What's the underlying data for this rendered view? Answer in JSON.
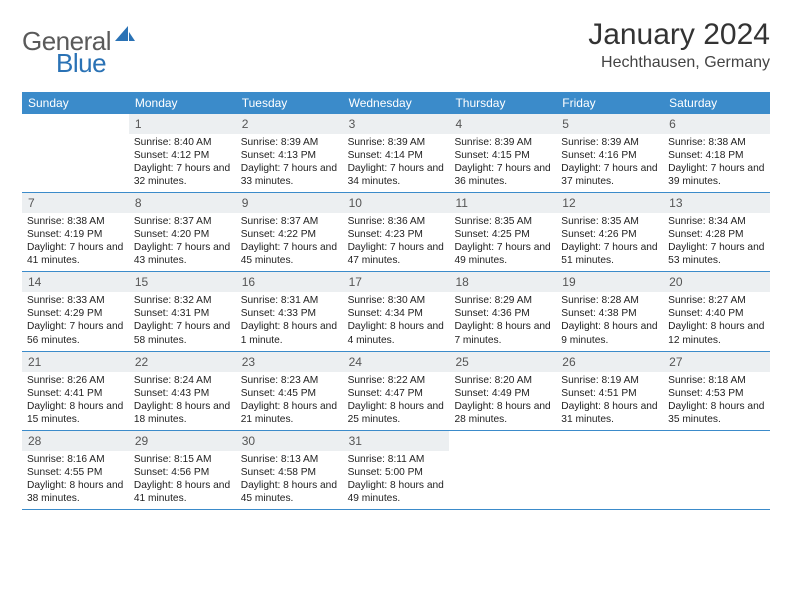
{
  "brand": {
    "word1": "General",
    "word2": "Blue"
  },
  "title": "January 2024",
  "location": "Hechthausen, Germany",
  "colors": {
    "header_bg": "#3b8bca",
    "header_text": "#ffffff",
    "daynum_bg": "#eceff1",
    "daynum_text": "#555555",
    "border": "#3b8bca",
    "title_text": "#333333",
    "body_text": "#222222",
    "logo_gray": "#5a5a5a",
    "logo_blue": "#2a72b5"
  },
  "weekdays": [
    "Sunday",
    "Monday",
    "Tuesday",
    "Wednesday",
    "Thursday",
    "Friday",
    "Saturday"
  ],
  "weeks": [
    [
      {
        "n": "",
        "sr": "",
        "ss": "",
        "dl": ""
      },
      {
        "n": "1",
        "sr": "Sunrise: 8:40 AM",
        "ss": "Sunset: 4:12 PM",
        "dl": "Daylight: 7 hours and 32 minutes."
      },
      {
        "n": "2",
        "sr": "Sunrise: 8:39 AM",
        "ss": "Sunset: 4:13 PM",
        "dl": "Daylight: 7 hours and 33 minutes."
      },
      {
        "n": "3",
        "sr": "Sunrise: 8:39 AM",
        "ss": "Sunset: 4:14 PM",
        "dl": "Daylight: 7 hours and 34 minutes."
      },
      {
        "n": "4",
        "sr": "Sunrise: 8:39 AM",
        "ss": "Sunset: 4:15 PM",
        "dl": "Daylight: 7 hours and 36 minutes."
      },
      {
        "n": "5",
        "sr": "Sunrise: 8:39 AM",
        "ss": "Sunset: 4:16 PM",
        "dl": "Daylight: 7 hours and 37 minutes."
      },
      {
        "n": "6",
        "sr": "Sunrise: 8:38 AM",
        "ss": "Sunset: 4:18 PM",
        "dl": "Daylight: 7 hours and 39 minutes."
      }
    ],
    [
      {
        "n": "7",
        "sr": "Sunrise: 8:38 AM",
        "ss": "Sunset: 4:19 PM",
        "dl": "Daylight: 7 hours and 41 minutes."
      },
      {
        "n": "8",
        "sr": "Sunrise: 8:37 AM",
        "ss": "Sunset: 4:20 PM",
        "dl": "Daylight: 7 hours and 43 minutes."
      },
      {
        "n": "9",
        "sr": "Sunrise: 8:37 AM",
        "ss": "Sunset: 4:22 PM",
        "dl": "Daylight: 7 hours and 45 minutes."
      },
      {
        "n": "10",
        "sr": "Sunrise: 8:36 AM",
        "ss": "Sunset: 4:23 PM",
        "dl": "Daylight: 7 hours and 47 minutes."
      },
      {
        "n": "11",
        "sr": "Sunrise: 8:35 AM",
        "ss": "Sunset: 4:25 PM",
        "dl": "Daylight: 7 hours and 49 minutes."
      },
      {
        "n": "12",
        "sr": "Sunrise: 8:35 AM",
        "ss": "Sunset: 4:26 PM",
        "dl": "Daylight: 7 hours and 51 minutes."
      },
      {
        "n": "13",
        "sr": "Sunrise: 8:34 AM",
        "ss": "Sunset: 4:28 PM",
        "dl": "Daylight: 7 hours and 53 minutes."
      }
    ],
    [
      {
        "n": "14",
        "sr": "Sunrise: 8:33 AM",
        "ss": "Sunset: 4:29 PM",
        "dl": "Daylight: 7 hours and 56 minutes."
      },
      {
        "n": "15",
        "sr": "Sunrise: 8:32 AM",
        "ss": "Sunset: 4:31 PM",
        "dl": "Daylight: 7 hours and 58 minutes."
      },
      {
        "n": "16",
        "sr": "Sunrise: 8:31 AM",
        "ss": "Sunset: 4:33 PM",
        "dl": "Daylight: 8 hours and 1 minute."
      },
      {
        "n": "17",
        "sr": "Sunrise: 8:30 AM",
        "ss": "Sunset: 4:34 PM",
        "dl": "Daylight: 8 hours and 4 minutes."
      },
      {
        "n": "18",
        "sr": "Sunrise: 8:29 AM",
        "ss": "Sunset: 4:36 PM",
        "dl": "Daylight: 8 hours and 7 minutes."
      },
      {
        "n": "19",
        "sr": "Sunrise: 8:28 AM",
        "ss": "Sunset: 4:38 PM",
        "dl": "Daylight: 8 hours and 9 minutes."
      },
      {
        "n": "20",
        "sr": "Sunrise: 8:27 AM",
        "ss": "Sunset: 4:40 PM",
        "dl": "Daylight: 8 hours and 12 minutes."
      }
    ],
    [
      {
        "n": "21",
        "sr": "Sunrise: 8:26 AM",
        "ss": "Sunset: 4:41 PM",
        "dl": "Daylight: 8 hours and 15 minutes."
      },
      {
        "n": "22",
        "sr": "Sunrise: 8:24 AM",
        "ss": "Sunset: 4:43 PM",
        "dl": "Daylight: 8 hours and 18 minutes."
      },
      {
        "n": "23",
        "sr": "Sunrise: 8:23 AM",
        "ss": "Sunset: 4:45 PM",
        "dl": "Daylight: 8 hours and 21 minutes."
      },
      {
        "n": "24",
        "sr": "Sunrise: 8:22 AM",
        "ss": "Sunset: 4:47 PM",
        "dl": "Daylight: 8 hours and 25 minutes."
      },
      {
        "n": "25",
        "sr": "Sunrise: 8:20 AM",
        "ss": "Sunset: 4:49 PM",
        "dl": "Daylight: 8 hours and 28 minutes."
      },
      {
        "n": "26",
        "sr": "Sunrise: 8:19 AM",
        "ss": "Sunset: 4:51 PM",
        "dl": "Daylight: 8 hours and 31 minutes."
      },
      {
        "n": "27",
        "sr": "Sunrise: 8:18 AM",
        "ss": "Sunset: 4:53 PM",
        "dl": "Daylight: 8 hours and 35 minutes."
      }
    ],
    [
      {
        "n": "28",
        "sr": "Sunrise: 8:16 AM",
        "ss": "Sunset: 4:55 PM",
        "dl": "Daylight: 8 hours and 38 minutes."
      },
      {
        "n": "29",
        "sr": "Sunrise: 8:15 AM",
        "ss": "Sunset: 4:56 PM",
        "dl": "Daylight: 8 hours and 41 minutes."
      },
      {
        "n": "30",
        "sr": "Sunrise: 8:13 AM",
        "ss": "Sunset: 4:58 PM",
        "dl": "Daylight: 8 hours and 45 minutes."
      },
      {
        "n": "31",
        "sr": "Sunrise: 8:11 AM",
        "ss": "Sunset: 5:00 PM",
        "dl": "Daylight: 8 hours and 49 minutes."
      },
      {
        "n": "",
        "sr": "",
        "ss": "",
        "dl": ""
      },
      {
        "n": "",
        "sr": "",
        "ss": "",
        "dl": ""
      },
      {
        "n": "",
        "sr": "",
        "ss": "",
        "dl": ""
      }
    ]
  ]
}
